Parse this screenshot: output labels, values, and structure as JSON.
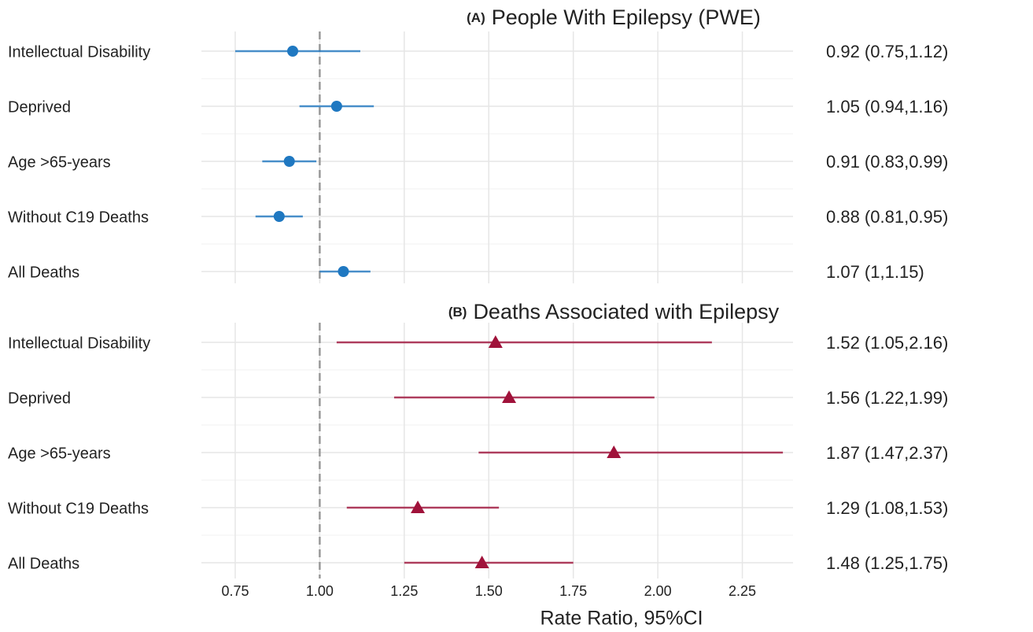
{
  "chart_data": [
    {
      "type": "forest",
      "panel_label": "(A)",
      "title": "People With Epilepsy (PWE)",
      "categories": [
        "Intellectual Disability",
        "Deprived",
        "Age >65-years",
        "Without C19 Deaths",
        "All Deaths"
      ],
      "values": [
        0.92,
        1.05,
        0.91,
        0.88,
        1.07
      ],
      "lower": [
        0.75,
        0.94,
        0.83,
        0.81,
        1
      ],
      "upper": [
        1.12,
        1.16,
        0.99,
        0.95,
        1.15
      ],
      "value_labels": [
        "0.92 (0.75,1.12)",
        "1.05 (0.94,1.16)",
        "0.91 (0.83,0.99)",
        "0.88 (0.81,0.95)",
        "1.07 (1,1.15)"
      ],
      "color": "#1f78c1",
      "marker": "circle",
      "ref_line": 1,
      "xlim": [
        0.65,
        2.4
      ],
      "xticks": [
        0.75,
        1,
        1.25,
        1.5,
        1.75,
        2,
        2.25
      ],
      "grid": true
    },
    {
      "type": "forest",
      "panel_label": "(B)",
      "title": "Deaths Associated with Epilepsy",
      "categories": [
        "Intellectual Disability",
        "Deprived",
        "Age >65-years",
        "Without C19 Deaths",
        "All Deaths"
      ],
      "values": [
        1.52,
        1.56,
        1.87,
        1.29,
        1.48
      ],
      "lower": [
        1.05,
        1.22,
        1.47,
        1.08,
        1.25
      ],
      "upper": [
        2.16,
        1.99,
        2.37,
        1.53,
        1.75
      ],
      "value_labels": [
        "1.52 (1.05,2.16)",
        "1.56 (1.22,1.99)",
        "1.87 (1.47,2.37)",
        "1.29 (1.08,1.53)",
        "1.48 (1.25,1.75)"
      ],
      "color": "#a0123a",
      "marker": "triangle",
      "ref_line": 1,
      "xlim": [
        0.65,
        2.4
      ],
      "xticks": [
        0.75,
        {
          "value": 1,
          "label": "1.00"
        },
        1.25,
        {
          "value": 1.5,
          "label": "1.50"
        },
        1.75,
        {
          "value": 2,
          "label": "2.00"
        },
        2.25
      ],
      "xlabel": "Rate Ratio, 95%CI",
      "grid": true
    }
  ]
}
